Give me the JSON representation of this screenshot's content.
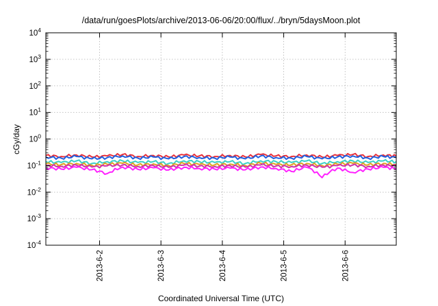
{
  "chart_data": {
    "type": "line",
    "title": "/data/run/goesPlots/archive/2013-06-06/20:00/flux/../bryn/5daysMoon.plot",
    "xlabel": "Coordinated Universal Time (UTC)",
    "ylabel": "cGy/day",
    "yscale": "log",
    "ylim": [
      0.0001,
      10000
    ],
    "xlim": [
      "2013-06-01 03:00",
      "2013-06-06 20:00"
    ],
    "grid": true,
    "y_ticks": [
      {
        "base": "10",
        "exp": "-4",
        "value": 0.0001
      },
      {
        "base": "10",
        "exp": "-3",
        "value": 0.001
      },
      {
        "base": "10",
        "exp": "-2",
        "value": 0.01
      },
      {
        "base": "10",
        "exp": "-1",
        "value": 0.1
      },
      {
        "base": "10",
        "exp": "0",
        "value": 1
      },
      {
        "base": "10",
        "exp": "1",
        "value": 10
      },
      {
        "base": "10",
        "exp": "2",
        "value": 100
      },
      {
        "base": "10",
        "exp": "3",
        "value": 1000
      },
      {
        "base": "10",
        "exp": "4",
        "value": 10000
      }
    ],
    "x_ticks": [
      {
        "label": "2013-6-2",
        "value": "2013-06-02 00:00"
      },
      {
        "label": "2013-6-3",
        "value": "2013-06-03 00:00"
      },
      {
        "label": "2013-6-4",
        "value": "2013-06-04 00:00"
      },
      {
        "label": "2013-6-5",
        "value": "2013-06-05 00:00"
      },
      {
        "label": "2013-6-6",
        "value": "2013-06-06 00:00"
      }
    ],
    "x": [
      "2013-06-01 03:00",
      "2013-06-01 09:00",
      "2013-06-01 15:00",
      "2013-06-01 21:00",
      "2013-06-02 03:00",
      "2013-06-02 09:00",
      "2013-06-02 15:00",
      "2013-06-02 21:00",
      "2013-06-03 03:00",
      "2013-06-03 09:00",
      "2013-06-03 15:00",
      "2013-06-03 21:00",
      "2013-06-04 03:00",
      "2013-06-04 09:00",
      "2013-06-04 15:00",
      "2013-06-04 21:00",
      "2013-06-05 03:00",
      "2013-06-05 09:00",
      "2013-06-05 15:00",
      "2013-06-05 21:00",
      "2013-06-06 03:00",
      "2013-06-06 09:00",
      "2013-06-06 15:00",
      "2013-06-06 20:00"
    ],
    "series": [
      {
        "color": "#e8303a",
        "values": [
          0.24,
          0.22,
          0.25,
          0.21,
          0.23,
          0.26,
          0.22,
          0.24,
          0.21,
          0.25,
          0.23,
          0.22,
          0.24,
          0.21,
          0.26,
          0.23,
          0.22,
          0.25,
          0.21,
          0.24,
          0.26,
          0.22,
          0.25,
          0.23
        ]
      },
      {
        "color": "#1f60e0",
        "values": [
          0.21,
          0.19,
          0.22,
          0.18,
          0.2,
          0.23,
          0.19,
          0.21,
          0.18,
          0.22,
          0.2,
          0.19,
          0.21,
          0.18,
          0.23,
          0.2,
          0.19,
          0.22,
          0.18,
          0.21,
          0.23,
          0.19,
          0.22,
          0.2
        ]
      },
      {
        "color": "#3ad0c8",
        "values": [
          0.14,
          0.13,
          0.15,
          0.12,
          0.14,
          0.15,
          0.13,
          0.14,
          0.12,
          0.15,
          0.14,
          0.13,
          0.14,
          0.12,
          0.15,
          0.14,
          0.13,
          0.15,
          0.12,
          0.14,
          0.15,
          0.13,
          0.15,
          0.14
        ]
      },
      {
        "color": "#e0a020",
        "values": [
          0.115,
          0.108,
          0.12,
          0.102,
          0.112,
          0.122,
          0.106,
          0.115,
          0.1,
          0.12,
          0.11,
          0.106,
          0.114,
          0.1,
          0.122,
          0.11,
          0.106,
          0.12,
          0.1,
          0.114,
          0.122,
          0.106,
          0.12,
          0.11
        ]
      },
      {
        "color": "#d030a8",
        "values": [
          0.1,
          0.094,
          0.104,
          0.088,
          0.098,
          0.106,
          0.092,
          0.1,
          0.086,
          0.104,
          0.096,
          0.092,
          0.099,
          0.087,
          0.106,
          0.096,
          0.092,
          0.104,
          0.087,
          0.099,
          0.106,
          0.092,
          0.104,
          0.096
        ]
      },
      {
        "color": "#ff20ff",
        "values": [
          0.082,
          0.074,
          0.086,
          0.07,
          0.05,
          0.088,
          0.072,
          0.082,
          0.068,
          0.086,
          0.078,
          0.074,
          0.08,
          0.069,
          0.088,
          0.078,
          0.06,
          0.086,
          0.035,
          0.08,
          0.055,
          0.074,
          0.086,
          0.076
        ]
      }
    ]
  }
}
